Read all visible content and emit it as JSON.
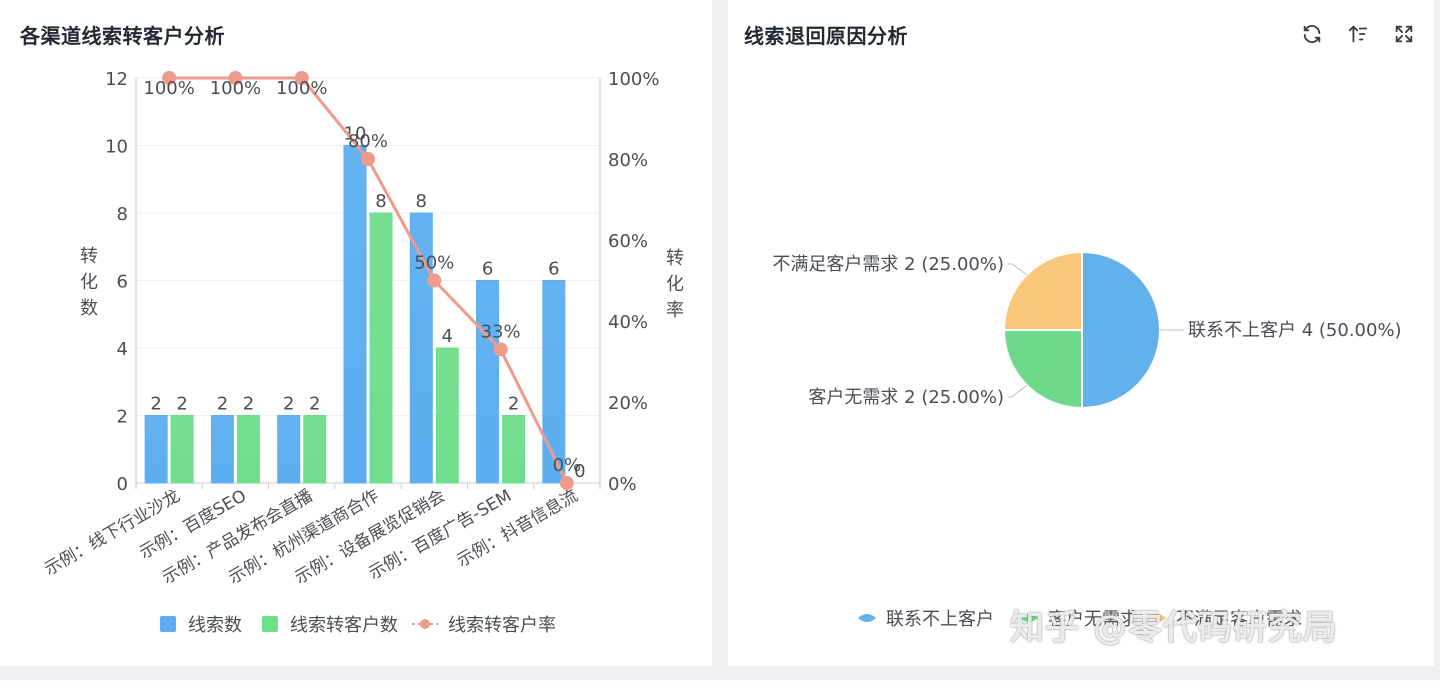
{
  "left_card": {
    "title": "各渠道线索转客户分析"
  },
  "right_card": {
    "title": "线索退回原因分析",
    "tools": [
      "refresh-icon",
      "sort-icon",
      "fullscreen-icon"
    ]
  },
  "watermark": "知乎 @零代码研究局",
  "chart_data": [
    {
      "type": "bar",
      "categories": [
        "示例：线下行业沙龙",
        "示例：百度SEO",
        "示例：产品发布会直播",
        "示例：杭州渠道商合作",
        "示例：设备展览促销会",
        "示例：百度广告-SEM",
        "示例：抖音信息流"
      ],
      "series": [
        {
          "name": "线索数",
          "kind": "bar",
          "values": [
            2,
            2,
            2,
            10,
            8,
            6,
            6
          ],
          "color": "#5caef0"
        },
        {
          "name": "线索转客户数",
          "kind": "bar",
          "values": [
            2,
            2,
            2,
            8,
            4,
            2,
            0
          ],
          "color": "#6fde8c"
        },
        {
          "name": "线索转客户率",
          "kind": "line",
          "axis": "right",
          "values": [
            100,
            100,
            100,
            80,
            50,
            33,
            0
          ],
          "labels": [
            "100%",
            "100%",
            "100%",
            "80%",
            "50%",
            "33%",
            "0%"
          ],
          "color": "#ef9a8a"
        }
      ],
      "ylabel": "转化数",
      "y2label": "转化率",
      "ylim": [
        0,
        12
      ],
      "yticks": [
        "0",
        "2",
        "4",
        "6",
        "8",
        "10",
        "12"
      ],
      "y2lim": [
        0,
        100
      ],
      "y2ticks": [
        "0%",
        "20%",
        "40%",
        "60%",
        "80%",
        "100%"
      ],
      "legend": "bottom"
    },
    {
      "type": "pie",
      "slices": [
        {
          "name": "联系不上客户",
          "value": 4,
          "label": "联系不上客户 4 (50.00%)",
          "color": "#62b0ec"
        },
        {
          "name": "客户无需求",
          "value": 2,
          "label": "客户无需求 2 (25.00%)",
          "color": "#6fd98a"
        },
        {
          "name": "不满足客户需求",
          "value": 2,
          "label": "不满足客户需求 2 (25.00%)",
          "color": "#f8c77a"
        }
      ],
      "legend": "bottom"
    }
  ]
}
